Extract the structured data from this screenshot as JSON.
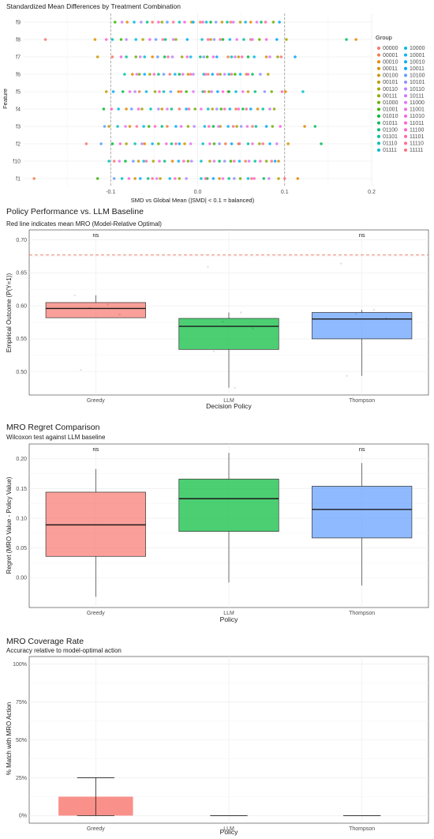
{
  "chart_data": [
    {
      "type": "scatter",
      "title": "Standardized Mean Differences by Treatment Combination",
      "xlabel": "SMD vs Global Mean (|SMD| < 0.1 = balanced)",
      "ylabel": "Feature",
      "xlim": [
        -0.2,
        0.2
      ],
      "xticks": [
        "-0.1",
        "0.0",
        "0.1",
        "0.2"
      ],
      "xtick_values": [
        -0.1,
        0.0,
        0.1,
        0.2
      ],
      "reference_lines": [
        -0.1,
        0.1
      ],
      "categories": [
        "f9",
        "f8",
        "f7",
        "f6",
        "f5",
        "f4",
        "f3",
        "f2",
        "f10",
        "f1"
      ],
      "legend_title": "Group",
      "legend_position": "right",
      "groups": [
        "00000",
        "00001",
        "00010",
        "00011",
        "00100",
        "00101",
        "00110",
        "00111",
        "01000",
        "01001",
        "01010",
        "01011",
        "01100",
        "01101",
        "01110",
        "01111",
        "10000",
        "10001",
        "10010",
        "10011",
        "10100",
        "10101",
        "10110",
        "10111",
        "11000",
        "11001",
        "11010",
        "11011",
        "11100",
        "11101",
        "11110",
        "11111"
      ],
      "colors": [
        "#F8766D",
        "#F07F4A",
        "#E58700",
        "#D89000",
        "#C99800",
        "#B79F00",
        "#A3A500",
        "#8BAB00",
        "#6BB100",
        "#39B600",
        "#00BA38",
        "#00BD5C",
        "#00BF7D",
        "#00C09A",
        "#00C0B5",
        "#00BDCE",
        "#00B9E3",
        "#00B4F0",
        "#00ADFA",
        "#00A5FF",
        "#619CFF",
        "#8F91FF",
        "#B385FF",
        "#CE79FF",
        "#E076F6",
        "#EB70E8",
        "#F564E3",
        "#FB61D7",
        "#FF63C5",
        "#FF65AE",
        "#FF6C98",
        "#FD6F82"
      ],
      "smd": {
        "f9": [
          -0.052,
          0.003,
          0.061,
          -0.081,
          0.028,
          -0.007,
          0.049,
          -0.041,
          0.087,
          -0.095,
          0.015,
          0.073,
          -0.058,
          0.034,
          -0.021,
          0.01,
          -0.073,
          0.055,
          -0.005,
          0.094,
          -0.035,
          0.021,
          -0.065,
          0.041,
          -0.087,
          0.068,
          -0.015,
          0.006,
          -0.045,
          0.078,
          -0.028,
          0.038
        ],
        "f8": [
          -0.175,
          0.061,
          0.182,
          -0.118,
          0.015,
          -0.063,
          0.102,
          -0.025,
          0.071,
          -0.088,
          0.029,
          0.171,
          -0.037,
          0.053,
          -0.098,
          0.005,
          -0.071,
          0.037,
          -0.012,
          0.091,
          -0.048,
          0.019,
          -0.082,
          0.063,
          -0.028,
          0.045,
          -0.055,
          0.079,
          -0.105,
          0.012,
          -0.04,
          0.026
        ],
        "f7": [
          -0.098,
          0.035,
          -0.052,
          0.079,
          -0.115,
          0.047,
          -0.018,
          0.092,
          -0.071,
          0.011,
          0.058,
          -0.038,
          0.003,
          -0.082,
          0.039,
          -0.061,
          0.065,
          -0.008,
          0.022,
          0.112,
          -0.046,
          0.007,
          -0.029,
          0.083,
          -0.066,
          0.043,
          -0.088,
          0.018,
          -0.012,
          0.051,
          -0.034,
          0.096
        ],
        "f6": [
          -0.032,
          0.012,
          -0.075,
          0.056,
          -0.011,
          0.081,
          -0.055,
          0.026,
          -0.067,
          0.043,
          -0.021,
          0.063,
          -0.045,
          0.007,
          -0.084,
          0.036,
          -0.026,
          0.049,
          -0.061,
          0.017,
          -0.039,
          0.072,
          -0.005,
          0.031,
          -0.07,
          0.009,
          -0.017,
          0.058,
          -0.05,
          0.023,
          -0.008,
          0.039
        ],
        "f5": [
          0.035,
          -0.067,
          0.101,
          -0.022,
          0.058,
          -0.105,
          0.013,
          -0.049,
          0.085,
          -0.013,
          0.036,
          -0.086,
          0.066,
          0.006,
          -0.039,
          0.121,
          -0.059,
          0.044,
          -0.097,
          0.023,
          -0.031,
          0.077,
          -0.072,
          0.016,
          -0.005,
          0.052,
          -0.078,
          0.029,
          -0.044,
          0.097,
          -0.019,
          0.008
        ],
        "f4": [
          -0.021,
          0.044,
          -0.082,
          0.069,
          -0.041,
          0.017,
          -0.064,
          0.088,
          -0.003,
          0.027,
          -0.108,
          0.052,
          -0.03,
          0.075,
          -0.054,
          0.012,
          -0.091,
          0.037,
          -0.013,
          0.061,
          -0.076,
          0.022,
          -0.045,
          0.083,
          -0.035,
          0.004,
          -0.068,
          0.047,
          -0.099,
          0.031,
          -0.01,
          0.056
        ],
        "f3": [
          0.063,
          -0.035,
          0.123,
          -0.078,
          0.026,
          -0.102,
          0.045,
          -0.011,
          0.086,
          -0.056,
          0.018,
          0.135,
          -0.041,
          0.067,
          -0.092,
          0.008,
          -0.062,
          0.035,
          -0.025,
          0.079,
          -0.107,
          0.05,
          -0.004,
          0.024,
          -0.083,
          0.057,
          -0.019,
          0.095,
          -0.049,
          0.013,
          -0.07,
          0.041
        ],
        "f2": [
          -0.128,
          0.032,
          -0.061,
          0.104,
          -0.015,
          0.047,
          -0.082,
          0.071,
          -0.045,
          0.019,
          -0.098,
          0.142,
          -0.03,
          0.058,
          -0.072,
          0.006,
          -0.052,
          0.083,
          -0.021,
          0.039,
          -0.111,
          0.025,
          -0.064,
          0.091,
          -0.008,
          0.063,
          -0.036,
          0.014,
          -0.089,
          0.048,
          -0.025,
          0.075
        ],
        "f10": [
          -0.096,
          0.055,
          -0.029,
          0.093,
          -0.068,
          0.014,
          -0.051,
          0.079,
          -0.011,
          0.038,
          -0.083,
          0.025,
          -0.038,
          0.066,
          -0.102,
          0.004,
          -0.062,
          0.048,
          -0.022,
          0.089,
          -0.074,
          0.031,
          -0.007,
          0.059,
          -0.09,
          0.019,
          -0.044,
          0.072,
          -0.016,
          0.042,
          -0.059,
          0.085
        ],
        "f1": [
          0.062,
          -0.188,
          0.115,
          -0.072,
          0.025,
          -0.043,
          0.093,
          -0.021,
          0.049,
          -0.115,
          0.011,
          0.076,
          -0.057,
          0.036,
          -0.087,
          0.004,
          -0.032,
          0.058,
          -0.066,
          0.018,
          -0.096,
          0.042,
          -0.013,
          0.082,
          -0.047,
          0.029,
          -0.079,
          0.065,
          -0.026,
          0.009,
          -0.052,
          0.1
        ]
      }
    },
    {
      "type": "box",
      "title": "Policy Performance vs. LLM Baseline",
      "subtitle": "Red line indicates mean MRO (Model-Relative Optimal)",
      "xlabel": "Decision Policy",
      "ylabel": "Empirical Outcome (P(Y=1))",
      "ylim": [
        0.465,
        0.715
      ],
      "yticks": [
        "0.50",
        "0.55",
        "0.60",
        "0.65",
        "0.70"
      ],
      "ytick_values": [
        0.5,
        0.55,
        0.6,
        0.65,
        0.7
      ],
      "reference_line": 0.677,
      "categories": [
        "Greedy",
        "LLM",
        "Thompson"
      ],
      "colors": [
        "#F8766D",
        "#00BA38",
        "#619CFF"
      ],
      "boxes": [
        {
          "q1": 0.582,
          "median": 0.596,
          "q3": 0.605,
          "whisker_low": 0.582,
          "whisker_high": 0.616
        },
        {
          "q1": 0.534,
          "median": 0.569,
          "q3": 0.581,
          "whisker_low": 0.476,
          "whisker_high": 0.59
        },
        {
          "q1": 0.55,
          "median": 0.58,
          "q3": 0.59,
          "whisker_low": 0.494,
          "whisker_high": 0.594
        }
      ],
      "points": [
        [
          0.616,
          0.602,
          0.597,
          0.587,
          0.503
        ],
        [
          0.659,
          0.59,
          0.576,
          0.566,
          0.531,
          0.476
        ],
        [
          0.664,
          0.594,
          0.588,
          0.581,
          0.494
        ]
      ],
      "annotations": [
        "ns",
        "",
        "ns"
      ]
    },
    {
      "type": "box",
      "title": "MRO Regret Comparison",
      "subtitle": "Wilcoxon test against LLM baseline",
      "xlabel": "Policy",
      "ylabel": "Regret (MRO Value - Policy Value)",
      "ylim": [
        -0.05,
        0.225
      ],
      "yticks": [
        "0.00",
        "0.05",
        "0.10",
        "0.15",
        "0.20"
      ],
      "ytick_values": [
        0.0,
        0.05,
        0.1,
        0.15,
        0.2
      ],
      "categories": [
        "Greedy",
        "LLM",
        "Thompson"
      ],
      "colors": [
        "#F8766D",
        "#00BA38",
        "#619CFF"
      ],
      "boxes": [
        {
          "q1": 0.036,
          "median": 0.089,
          "q3": 0.144,
          "whisker_low": -0.032,
          "whisker_high": 0.183
        },
        {
          "q1": 0.078,
          "median": 0.133,
          "q3": 0.166,
          "whisker_low": -0.008,
          "whisker_high": 0.21
        },
        {
          "q1": 0.067,
          "median": 0.115,
          "q3": 0.154,
          "whisker_low": -0.013,
          "whisker_high": 0.193
        }
      ],
      "annotations": [
        "ns",
        "",
        "ns"
      ]
    },
    {
      "type": "bar",
      "title": "MRO Coverage Rate",
      "subtitle": "Accuracy relative to model-optimal action",
      "xlabel": "Policy",
      "ylabel": "% Match with MRO Action",
      "ylim": [
        -0.05,
        1.05
      ],
      "yticks": [
        "0%",
        "25%",
        "50%",
        "75%",
        "100%"
      ],
      "ytick_values": [
        0,
        0.25,
        0.5,
        0.75,
        1.0
      ],
      "categories": [
        "Greedy",
        "LLM",
        "Thompson"
      ],
      "colors": [
        "#F8766D",
        "#00BA38",
        "#619CFF"
      ],
      "values": [
        0.125,
        0.0,
        0.0
      ],
      "error_low": [
        0.0,
        0.0,
        0.0
      ],
      "error_high": [
        0.25,
        0.0,
        0.0
      ]
    }
  ]
}
